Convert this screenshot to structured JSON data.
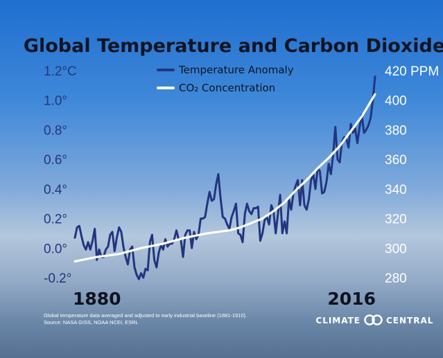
{
  "chart_data": {
    "type": "line",
    "title": "Global Temperature and Carbon Dioxide",
    "x_range": [
      1880,
      2016
    ],
    "x_tick_labels": [
      "1880",
      "2016"
    ],
    "y_left": {
      "range": [
        -0.2,
        1.2
      ],
      "tick_labels": [
        "1.2°C",
        "1.0°",
        "0.8°",
        "0.6°",
        "0.4°",
        "0.2°",
        "0.0°",
        "-0.2°"
      ],
      "tick_values": [
        1.2,
        1.0,
        0.8,
        0.6,
        0.4,
        0.2,
        0.0,
        -0.2
      ]
    },
    "y_right": {
      "range": [
        280,
        420
      ],
      "tick_labels": [
        "420 PPM",
        "400",
        "380",
        "360",
        "340",
        "320",
        "300",
        "280"
      ],
      "tick_values": [
        420,
        400,
        380,
        360,
        340,
        320,
        300,
        280
      ]
    },
    "legend_position": "top-center",
    "grid": false,
    "series": [
      {
        "name": "Temperature Anomaly",
        "axis": "left",
        "color": "#22357f",
        "x": [
          1880,
          1881,
          1882,
          1883,
          1884,
          1885,
          1886,
          1887,
          1888,
          1889,
          1890,
          1891,
          1892,
          1893,
          1894,
          1895,
          1896,
          1897,
          1898,
          1899,
          1900,
          1901,
          1902,
          1903,
          1904,
          1905,
          1906,
          1907,
          1908,
          1909,
          1910,
          1911,
          1912,
          1913,
          1914,
          1915,
          1916,
          1917,
          1918,
          1919,
          1920,
          1921,
          1922,
          1923,
          1924,
          1925,
          1926,
          1927,
          1928,
          1929,
          1930,
          1931,
          1932,
          1933,
          1934,
          1935,
          1936,
          1937,
          1938,
          1939,
          1940,
          1941,
          1942,
          1943,
          1944,
          1945,
          1946,
          1947,
          1948,
          1949,
          1950,
          1951,
          1952,
          1953,
          1954,
          1955,
          1956,
          1957,
          1958,
          1959,
          1960,
          1961,
          1962,
          1963,
          1964,
          1965,
          1966,
          1967,
          1968,
          1969,
          1970,
          1971,
          1972,
          1973,
          1974,
          1975,
          1976,
          1977,
          1978,
          1979,
          1980,
          1981,
          1982,
          1983,
          1984,
          1985,
          1986,
          1987,
          1988,
          1989,
          1990,
          1991,
          1992,
          1993,
          1994,
          1995,
          1996,
          1997,
          1998,
          1999,
          2000,
          2001,
          2002,
          2003,
          2004,
          2005,
          2006,
          2007,
          2008,
          2009,
          2010,
          2011,
          2012,
          2013,
          2014,
          2015,
          2016
        ],
        "values": [
          0.07,
          0.14,
          0.15,
          0.08,
          0.02,
          -0.01,
          0.04,
          -0.01,
          0.05,
          0.13,
          -0.08,
          -0.01,
          -0.06,
          -0.06,
          -0.01,
          0.01,
          0.09,
          0.11,
          -0.02,
          0.07,
          0.14,
          0.11,
          0.01,
          -0.06,
          -0.11,
          -0.01,
          0.01,
          -0.13,
          -0.18,
          -0.21,
          -0.17,
          -0.2,
          -0.14,
          -0.15,
          0.04,
          0.09,
          -0.08,
          -0.13,
          -0.03,
          0.02,
          -0.01,
          0.06,
          0.01,
          0.03,
          0.03,
          0.06,
          0.12,
          0.06,
          0.06,
          -0.06,
          0.09,
          0.12,
          0.12,
          0.0,
          0.11,
          0.06,
          0.09,
          0.2,
          0.2,
          0.21,
          0.3,
          0.38,
          0.32,
          0.33,
          0.43,
          0.5,
          0.34,
          0.21,
          0.2,
          0.16,
          0.13,
          0.21,
          0.25,
          0.3,
          0.1,
          0.09,
          0.04,
          0.23,
          0.3,
          0.25,
          0.23,
          0.27,
          0.27,
          0.28,
          0.05,
          0.1,
          0.19,
          0.21,
          0.16,
          0.29,
          0.25,
          0.1,
          0.23,
          0.36,
          0.1,
          0.18,
          0.1,
          0.33,
          0.26,
          0.37,
          0.42,
          0.46,
          0.29,
          0.46,
          0.29,
          0.26,
          0.33,
          0.46,
          0.5,
          0.4,
          0.54,
          0.52,
          0.37,
          0.38,
          0.45,
          0.57,
          0.5,
          0.63,
          0.82,
          0.6,
          0.58,
          0.72,
          0.75,
          0.74,
          0.68,
          0.84,
          0.78,
          0.81,
          0.71,
          0.82,
          0.9,
          0.78,
          0.8,
          0.83,
          0.88,
          1.0,
          1.16
        ]
      },
      {
        "name": "CO₂ Concentration",
        "axis": "right",
        "color": "#ffffff",
        "x": [
          1880,
          1890,
          1900,
          1910,
          1920,
          1930,
          1940,
          1950,
          1955,
          1960,
          1965,
          1970,
          1975,
          1980,
          1985,
          1990,
          1995,
          2000,
          2005,
          2010,
          2016
        ],
        "values": [
          291,
          294,
          296,
          300,
          303,
          307,
          310,
          312,
          314,
          317,
          320,
          325,
          331,
          339,
          346,
          354,
          361,
          369,
          379,
          389,
          404
        ]
      }
    ],
    "annotations": [
      "Global temperature data averaged and adjusted to early industrial baseline (1881-1910).",
      "Source: NASA GISS, NOAA NCEI, ESRL"
    ],
    "brand": {
      "left": "CLIMATE",
      "right": "CENTRAL"
    }
  }
}
